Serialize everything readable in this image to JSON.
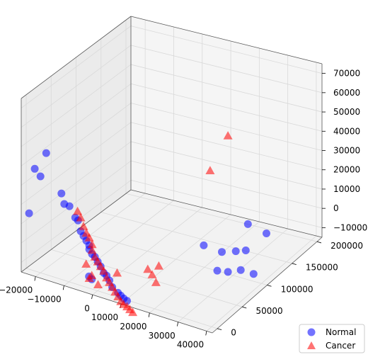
{
  "chart_data": {
    "type": "scatter",
    "projection": "3d",
    "grid": true,
    "legend_placement": "bottom-right",
    "xaxis": {
      "ticks": [
        "−20000",
        "−10000",
        "0",
        "10000",
        "20000",
        "30000",
        "40000"
      ]
    },
    "yaxis": {
      "ticks": [
        "0",
        "50000",
        "100000",
        "150000",
        "200000"
      ]
    },
    "zaxis": {
      "ticks": [
        "−10000",
        "0",
        "10000",
        "20000",
        "30000",
        "40000",
        "50000",
        "60000",
        "70000"
      ]
    },
    "series": [
      {
        "name": "Normal",
        "marker": "circle",
        "color": "#0000ff",
        "alpha": 0.55,
        "points": [
          [
            -18000,
            0,
            48000
          ],
          [
            -22000,
            0,
            38000
          ],
          [
            -20000,
            0,
            35000
          ],
          [
            -13000,
            2000,
            29000
          ],
          [
            -12000,
            2000,
            24000
          ],
          [
            -10000,
            1000,
            24000
          ],
          [
            -8000,
            1000,
            19000
          ],
          [
            -7000,
            1000,
            18000
          ],
          [
            -24000,
            0,
            14000
          ],
          [
            -6000,
            500,
            13000
          ],
          [
            -5000,
            500,
            11000
          ],
          [
            -4000,
            500,
            9000
          ],
          [
            -3000,
            500,
            7000
          ],
          [
            -3000,
            500,
            5000
          ],
          [
            -1000,
            500,
            2000
          ],
          [
            -2000,
            500,
            3000
          ],
          [
            0,
            500,
            0
          ],
          [
            1000,
            500,
            -2000
          ],
          [
            2000,
            1000,
            -5000
          ],
          [
            4000,
            1000,
            -8000
          ],
          [
            5000,
            1000,
            -11000
          ],
          [
            7000,
            1000,
            -13000
          ],
          [
            9000,
            1000,
            -15000
          ],
          [
            8000,
            1000,
            -14000
          ],
          [
            -3000,
            0,
            -9000
          ],
          [
            -2000,
            0,
            -10000
          ],
          [
            3000,
            1000,
            -6000
          ],
          [
            10000,
            2000,
            -16000
          ],
          [
            25000,
            70000,
            5000
          ],
          [
            30000,
            130000,
            5000
          ],
          [
            31000,
            100000,
            -2000
          ],
          [
            31000,
            120000,
            -6000
          ],
          [
            27000,
            95000,
            -3000
          ],
          [
            33000,
            150000,
            -3000
          ],
          [
            28000,
            80000,
            -9000
          ],
          [
            30000,
            90000,
            -11000
          ],
          [
            31000,
            110000,
            -14000
          ],
          [
            32000,
            130000,
            -20000
          ]
        ]
      },
      {
        "name": "Cancer",
        "marker": "triangle",
        "color": "#ff0000",
        "alpha": 0.55,
        "points": [
          [
            -7000,
            0,
            23000
          ],
          [
            -6000,
            500,
            20000
          ],
          [
            -5000,
            500,
            16000
          ],
          [
            -4000,
            500,
            13000
          ],
          [
            -3000,
            500,
            11000
          ],
          [
            -2000,
            500,
            8000
          ],
          [
            -2000,
            500,
            5000
          ],
          [
            -1000,
            500,
            2000
          ],
          [
            0,
            500,
            0
          ],
          [
            1000,
            500,
            -2000
          ],
          [
            2000,
            1000,
            -4000
          ],
          [
            3000,
            1000,
            -7000
          ],
          [
            4000,
            1000,
            -9000
          ],
          [
            5000,
            1000,
            -11000
          ],
          [
            6000,
            1000,
            -13000
          ],
          [
            7000,
            1000,
            -15000
          ],
          [
            8000,
            1000,
            -17000
          ],
          [
            9000,
            1000,
            -18000
          ],
          [
            10000,
            2000,
            -19000
          ],
          [
            11000,
            2000,
            -20000
          ],
          [
            12000,
            2000,
            -21000
          ],
          [
            -4000,
            0,
            -3000
          ],
          [
            -2000,
            0,
            -8000
          ],
          [
            6000,
            5000,
            -4000
          ],
          [
            18000,
            20000,
            2000
          ],
          [
            15000,
            15000,
            0
          ],
          [
            16000,
            18000,
            -3000
          ],
          [
            17000,
            20000,
            -7000
          ],
          [
            23000,
            130000,
            48000
          ],
          [
            22000,
            100000,
            36000
          ],
          [
            -3000,
            500,
            -10000
          ],
          [
            0,
            1000,
            -12000
          ]
        ]
      }
    ]
  }
}
